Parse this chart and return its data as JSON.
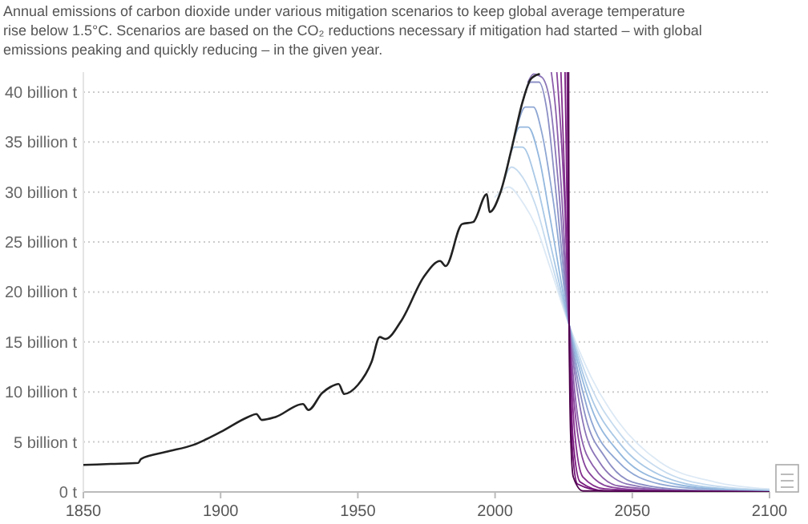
{
  "chart_data": {
    "type": "line",
    "title": "Annual emissions of carbon dioxide under various mitigation scenarios to keep global average temperature rise below 1.5°C. Scenarios are based on the CO₂ reductions necessary if mitigation had started – with global emissions peaking and quickly reducing – in the given year.",
    "xlim": [
      1850,
      2100
    ],
    "xticks": [
      1850,
      1900,
      1950,
      2000,
      2050,
      2100
    ],
    "ylim": [
      0,
      42
    ],
    "yticks": [
      {
        "value": 0,
        "label": "0 t"
      },
      {
        "value": 5,
        "label": "5 billion t"
      },
      {
        "value": 10,
        "label": "10 billion t"
      },
      {
        "value": 15,
        "label": "15 billion t"
      },
      {
        "value": 20,
        "label": "20 billion t"
      },
      {
        "value": 25,
        "label": "25 billion t"
      },
      {
        "value": 30,
        "label": "30 billion t"
      },
      {
        "value": 35,
        "label": "35 billion t"
      },
      {
        "value": 40,
        "label": "40 billion t"
      }
    ],
    "grid": "y",
    "series": [
      {
        "color": "#222222",
        "x": [
          1850,
          1860,
          1870,
          1871,
          1880,
          1890,
          1900,
          1910,
          1913,
          1915,
          1920,
          1930,
          1932,
          1937,
          1940,
          1943,
          1945,
          1950,
          1955,
          1958,
          1960,
          1966,
          1974,
          1980,
          1982,
          1988,
          1992,
          1997,
          1998,
          2002,
          2006,
          2010,
          2013,
          2016
        ],
        "values": [
          2.7,
          2.8,
          2.9,
          3.3,
          4.0,
          4.7,
          6.0,
          7.5,
          7.8,
          7.2,
          7.5,
          8.8,
          8.2,
          9.9,
          10.5,
          10.8,
          9.8,
          10.7,
          13.0,
          15.5,
          15.3,
          17.2,
          21.5,
          23.1,
          22.6,
          26.8,
          27.0,
          29.8,
          28.0,
          30.0,
          34.3,
          39.0,
          41.3,
          41.8
        ]
      },
      {
        "color": "#dce9f5",
        "x": [
          2000,
          2005,
          2010,
          2015,
          2020,
          2027,
          2035,
          2045,
          2060,
          2080,
          2100
        ],
        "values": [
          29.5,
          30.5,
          29,
          26.5,
          22.5,
          16.7,
          11.5,
          7,
          3,
          1,
          0.3
        ]
      },
      {
        "color": "#c6dbef",
        "x": [
          2002,
          2006,
          2010,
          2015,
          2020,
          2027,
          2035,
          2045,
          2060,
          2080,
          2100
        ],
        "values": [
          30,
          32.5,
          31.5,
          28.5,
          23.5,
          16.7,
          10.5,
          6,
          2.3,
          0.6,
          0.2
        ]
      },
      {
        "color": "#a9c8e6",
        "x": [
          2004,
          2007,
          2010,
          2015,
          2020,
          2027,
          2035,
          2045,
          2060,
          2080,
          2100
        ],
        "values": [
          32,
          34.5,
          34.5,
          31,
          25,
          16.7,
          9.5,
          5,
          1.7,
          0.4,
          0.1
        ]
      },
      {
        "color": "#94b8de",
        "x": [
          2006,
          2009,
          2012,
          2016,
          2020,
          2027,
          2035,
          2045,
          2060,
          2080,
          2100
        ],
        "values": [
          34.3,
          36.5,
          36.5,
          33.5,
          27.5,
          16.7,
          8.5,
          4,
          1.2,
          0.3,
          0.1
        ]
      },
      {
        "color": "#8ea6d3",
        "x": [
          2008,
          2011,
          2014,
          2017,
          2021,
          2027,
          2034,
          2045,
          2060,
          2080,
          2100
        ],
        "values": [
          36.5,
          38.5,
          38.5,
          36,
          29.5,
          16.7,
          8,
          3,
          0.8,
          0.2,
          0
        ]
      },
      {
        "color": "#8c8fc5",
        "x": [
          2010,
          2013,
          2016,
          2019,
          2022,
          2027,
          2033,
          2040,
          2050,
          2070,
          2100
        ],
        "values": [
          39,
          41,
          41,
          38,
          30.5,
          16.7,
          7.5,
          3.5,
          1,
          0.2,
          0
        ]
      },
      {
        "color": "#8c76b8",
        "x": [
          2012,
          2014,
          2017,
          2020,
          2023,
          2027,
          2032,
          2038,
          2048,
          2070,
          2100
        ],
        "values": [
          41,
          41.8,
          41.5,
          39,
          31,
          16.7,
          7,
          3,
          0.8,
          0.1,
          0
        ]
      },
      {
        "color": "#8c5eab",
        "x": [
          2020.5,
          2022,
          2024,
          2027,
          2031,
          2036,
          2045,
          2070,
          2100
        ],
        "values": [
          42,
          38.5,
          31,
          16.7,
          6,
          2.5,
          0.6,
          0.1,
          0
        ]
      },
      {
        "color": "#88449c",
        "x": [
          2022.5,
          2024,
          2025.5,
          2027,
          2030,
          2034,
          2042,
          2060,
          2100
        ],
        "values": [
          42,
          36,
          28,
          16.7,
          6,
          2,
          0.5,
          0.1,
          0
        ]
      },
      {
        "color": "#84308e",
        "x": [
          2024,
          2025,
          2026,
          2027,
          2029,
          2032,
          2040,
          2060,
          2100
        ],
        "values": [
          42,
          34,
          25,
          16.7,
          6,
          1.5,
          0.3,
          0.1,
          0
        ]
      },
      {
        "color": "#7a1b7f",
        "x": [
          2025.5,
          2026,
          2026.5,
          2027,
          2028.5,
          2031,
          2040,
          2100
        ],
        "values": [
          42,
          33,
          24,
          16.7,
          5,
          1,
          0.1,
          0
        ]
      },
      {
        "color": "#6d0d72",
        "x": [
          2026.3,
          2026.6,
          2027,
          2028,
          2030,
          2040,
          2100
        ],
        "values": [
          42,
          30,
          16.7,
          5,
          0.8,
          0.1,
          0
        ]
      },
      {
        "color": "#4d004b",
        "x": [
          2026.8,
          2027,
          2027.5,
          2028.5,
          2032,
          2100
        ],
        "values": [
          42,
          16.7,
          6,
          1.5,
          0.1,
          0
        ]
      }
    ]
  }
}
